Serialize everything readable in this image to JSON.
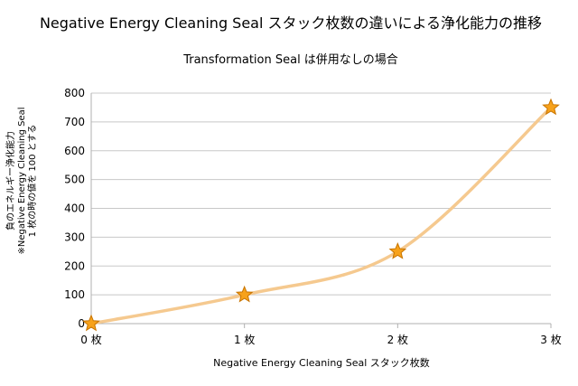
{
  "chart_data": {
    "type": "line",
    "title": "Negative Energy Cleaning Seal スタック枚数の違いによる浄化能力の推移",
    "subtitle": "Transformation Seal は併用なしの場合",
    "xlabel": "Negative Energy Cleaning Seal スタック枚数",
    "ylabel_lines": [
      "負のエネルギー浄化能力",
      "※Negative Energy Cleaning Seal",
      "1 枚の時の値を 100 とする"
    ],
    "categories": [
      "0 枚",
      "1 枚",
      "2 枚",
      "3 枚"
    ],
    "values": [
      0,
      100,
      250,
      750
    ],
    "ylim": [
      0,
      800
    ],
    "yticks": [
      0,
      100,
      200,
      300,
      400,
      500,
      600,
      700,
      800
    ],
    "grid": "horizontal",
    "smooth": true,
    "marker": "star",
    "colors": {
      "line": "#f5c98f",
      "marker_fill": "#f7a21b",
      "marker_stroke": "#c87400",
      "grid": "#c8c8c8",
      "axis": "#b0b0b0"
    }
  }
}
